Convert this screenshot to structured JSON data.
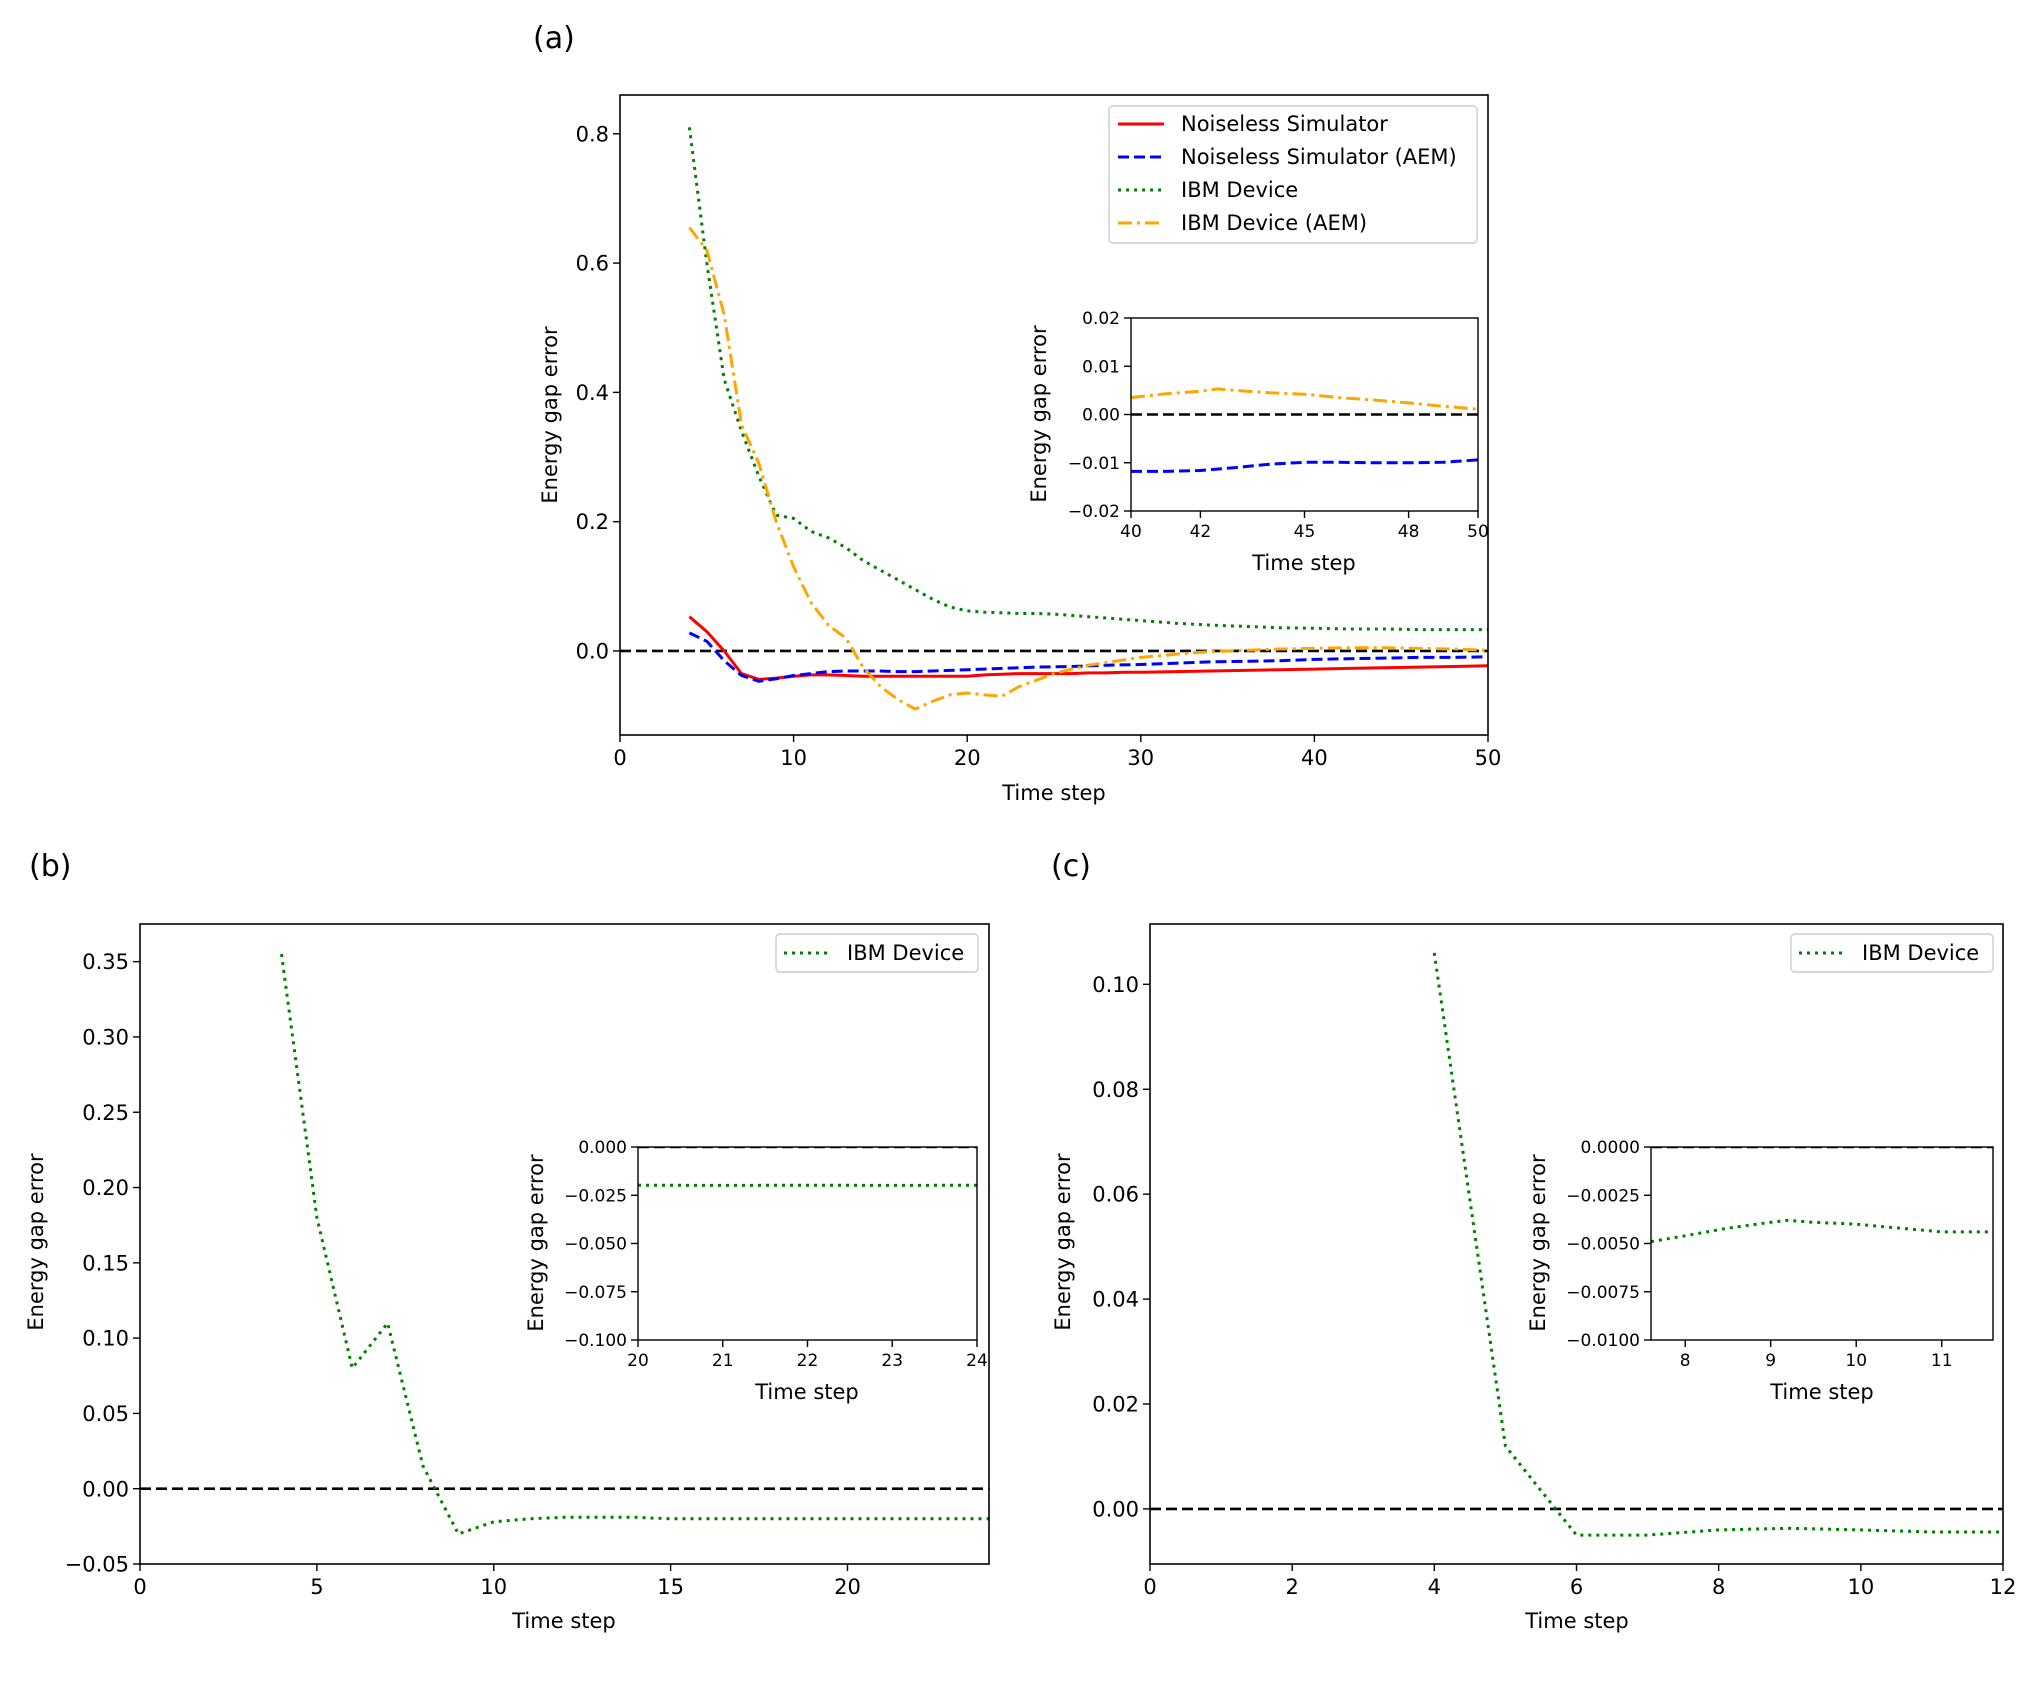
{
  "panels": [
    {
      "label": "(a)",
      "chart_data": {
        "type": "line",
        "title": "",
        "xlabel": "Time step",
        "ylabel": "Energy gap error",
        "xlim": [
          0,
          50
        ],
        "ylim": [
          -0.13,
          0.86
        ],
        "xticks": [
          0,
          10,
          20,
          30,
          40,
          50
        ],
        "xtick_labels": [
          "0",
          "10",
          "20",
          "30",
          "40",
          "50"
        ],
        "yticks": [
          0.0,
          0.2,
          0.4,
          0.6,
          0.8
        ],
        "ytick_labels": [
          "0.0",
          "0.2",
          "0.4",
          "0.6",
          "0.8"
        ],
        "grid": false,
        "legend_position": "top-right",
        "reference_line": 0,
        "series": [
          {
            "name": "Noiseless Simulator",
            "color": "#ff0000",
            "style": "solid",
            "x": [
              4,
              5,
              6,
              7,
              8,
              9,
              10,
              11,
              12,
              13,
              14,
              15,
              16,
              17,
              18,
              19,
              20,
              21,
              22,
              23,
              24,
              25,
              26,
              27,
              28,
              29,
              30,
              32,
              34,
              36,
              38,
              40,
              42,
              44,
              46,
              48,
              50
            ],
            "y": [
              0.053,
              0.03,
              0.0,
              -0.035,
              -0.044,
              -0.042,
              -0.039,
              -0.037,
              -0.037,
              -0.038,
              -0.039,
              -0.039,
              -0.039,
              -0.039,
              -0.039,
              -0.039,
              -0.039,
              -0.037,
              -0.036,
              -0.035,
              -0.035,
              -0.035,
              -0.035,
              -0.034,
              -0.034,
              -0.033,
              -0.033,
              -0.032,
              -0.031,
              -0.03,
              -0.029,
              -0.028,
              -0.027,
              -0.026,
              -0.025,
              -0.024,
              -0.023
            ]
          },
          {
            "name": "Noiseless Simulator (AEM)",
            "color": "#0000ff",
            "style": "dashed",
            "x": [
              4,
              5,
              6,
              7,
              8,
              9,
              10,
              11,
              12,
              13,
              14,
              15,
              16,
              17,
              18,
              19,
              20,
              22,
              24,
              26,
              28,
              30,
              32,
              34,
              36,
              38,
              40,
              42,
              44,
              46,
              48,
              50
            ],
            "y": [
              0.028,
              0.015,
              -0.015,
              -0.038,
              -0.047,
              -0.043,
              -0.038,
              -0.035,
              -0.032,
              -0.031,
              -0.031,
              -0.031,
              -0.032,
              -0.032,
              -0.031,
              -0.03,
              -0.029,
              -0.027,
              -0.025,
              -0.024,
              -0.022,
              -0.021,
              -0.019,
              -0.017,
              -0.016,
              -0.015,
              -0.013,
              -0.012,
              -0.011,
              -0.01,
              -0.01,
              -0.009
            ]
          },
          {
            "name": "IBM Device",
            "color": "#008000",
            "style": "dotted",
            "x": [
              4,
              5,
              6,
              7,
              8,
              9,
              10,
              11,
              12,
              13,
              14,
              15,
              16,
              17,
              18,
              19,
              20,
              21,
              22,
              23,
              24,
              25,
              26,
              27,
              28,
              29,
              30,
              32,
              34,
              36,
              38,
              40,
              42,
              44,
              46,
              48,
              50
            ],
            "y": [
              0.81,
              0.6,
              0.42,
              0.34,
              0.27,
              0.21,
              0.205,
              0.185,
              0.175,
              0.16,
              0.14,
              0.125,
              0.11,
              0.095,
              0.08,
              0.068,
              0.062,
              0.06,
              0.059,
              0.058,
              0.058,
              0.057,
              0.055,
              0.053,
              0.051,
              0.049,
              0.047,
              0.043,
              0.04,
              0.038,
              0.036,
              0.035,
              0.034,
              0.034,
              0.033,
              0.033,
              0.033
            ]
          },
          {
            "name": "IBM Device (AEM)",
            "color": "#ffa500",
            "style": "dashdot",
            "x": [
              4,
              5,
              6,
              7,
              8,
              9,
              10,
              11,
              12,
              13,
              14,
              15,
              16,
              17,
              18,
              19,
              20,
              21,
              22,
              23,
              24,
              25,
              26,
              27,
              28,
              29,
              30,
              32,
              34,
              36,
              38,
              40,
              42,
              44,
              46,
              48,
              50
            ],
            "y": [
              0.655,
              0.62,
              0.52,
              0.35,
              0.29,
              0.2,
              0.13,
              0.075,
              0.04,
              0.02,
              -0.025,
              -0.055,
              -0.075,
              -0.09,
              -0.078,
              -0.068,
              -0.065,
              -0.068,
              -0.07,
              -0.055,
              -0.045,
              -0.035,
              -0.028,
              -0.022,
              -0.018,
              -0.014,
              -0.01,
              -0.005,
              -0.001,
              0.001,
              0.003,
              0.004,
              0.005,
              0.005,
              0.004,
              0.003,
              0.001
            ]
          }
        ],
        "inset": {
          "xlabel": "Time step",
          "ylabel": "Energy gap error",
          "xlim": [
            40,
            50
          ],
          "ylim": [
            -0.02,
            0.02
          ],
          "xticks": [
            40,
            42,
            45,
            48,
            50
          ],
          "xtick_labels": [
            "40",
            "42",
            "45",
            "48",
            "50"
          ],
          "yticks": [
            -0.02,
            -0.01,
            0.0,
            0.01,
            0.02
          ],
          "ytick_labels": [
            "−0.02",
            "−0.01",
            "0.00",
            "0.01",
            "0.02"
          ],
          "reference_line": 0,
          "series": [
            {
              "name": "Noiseless Simulator (AEM)",
              "color": "#0000ff",
              "style": "dashed",
              "x": [
                40,
                41,
                42,
                43,
                44,
                45,
                46,
                47,
                48,
                49,
                50
              ],
              "y": [
                -0.0118,
                -0.0118,
                -0.0116,
                -0.011,
                -0.0103,
                -0.0099,
                -0.0099,
                -0.01,
                -0.01,
                -0.0099,
                -0.0094
              ]
            },
            {
              "name": "IBM Device (AEM)",
              "color": "#ffa500",
              "style": "dashdot",
              "x": [
                40,
                41,
                42,
                42.5,
                43,
                44,
                45,
                46,
                47,
                48,
                49,
                50
              ],
              "y": [
                0.0035,
                0.0043,
                0.0048,
                0.0053,
                0.005,
                0.0045,
                0.0042,
                0.0035,
                0.003,
                0.0024,
                0.0017,
                0.0011
              ]
            }
          ]
        }
      }
    },
    {
      "label": "(b)",
      "chart_data": {
        "type": "line",
        "title": "",
        "xlabel": "Time step",
        "ylabel": "Energy gap error",
        "xlim": [
          0,
          24
        ],
        "ylim": [
          -0.05,
          0.375
        ],
        "xticks": [
          0,
          5,
          10,
          15,
          20
        ],
        "xtick_labels": [
          "0",
          "5",
          "10",
          "15",
          "20"
        ],
        "yticks": [
          -0.05,
          0.0,
          0.05,
          0.1,
          0.15,
          0.2,
          0.25,
          0.3,
          0.35
        ],
        "ytick_labels": [
          "−0.05",
          "0.00",
          "0.05",
          "0.10",
          "0.15",
          "0.20",
          "0.25",
          "0.30",
          "0.35"
        ],
        "grid": false,
        "legend_position": "top-right",
        "reference_line": 0,
        "series": [
          {
            "name": "IBM Device",
            "color": "#008000",
            "style": "dotted",
            "x": [
              4,
              5,
              6,
              7,
              8,
              9,
              10,
              11,
              12,
              13,
              14,
              15,
              16,
              17,
              18,
              19,
              20,
              21,
              22,
              23,
              24
            ],
            "y": [
              0.355,
              0.18,
              0.08,
              0.11,
              0.015,
              -0.03,
              -0.022,
              -0.02,
              -0.019,
              -0.019,
              -0.019,
              -0.02,
              -0.02,
              -0.02,
              -0.02,
              -0.02,
              -0.02,
              -0.02,
              -0.02,
              -0.02,
              -0.02
            ]
          }
        ],
        "inset": {
          "xlabel": "Time step",
          "ylabel": "Energy gap error",
          "xlim": [
            20,
            24
          ],
          "ylim": [
            -0.1,
            0.0
          ],
          "xticks": [
            20,
            21,
            22,
            23,
            24
          ],
          "xtick_labels": [
            "20",
            "21",
            "22",
            "23",
            "24"
          ],
          "yticks": [
            -0.1,
            -0.075,
            -0.05,
            -0.025,
            0.0
          ],
          "ytick_labels": [
            "−0.100",
            "−0.075",
            "−0.050",
            "−0.025",
            "0.000"
          ],
          "reference_line": 0,
          "series": [
            {
              "name": "IBM Device",
              "color": "#008000",
              "style": "dotted",
              "x": [
                20,
                21,
                22,
                23,
                24
              ],
              "y": [
                -0.0198,
                -0.0199,
                -0.0198,
                -0.0199,
                -0.0198
              ]
            }
          ]
        }
      }
    },
    {
      "label": "(c)",
      "chart_data": {
        "type": "line",
        "title": "",
        "xlabel": "Time step",
        "ylabel": "Energy gap error",
        "xlim": [
          0,
          12
        ],
        "ylim": [
          -0.0105,
          0.1115
        ],
        "xticks": [
          0,
          2,
          4,
          6,
          8,
          10,
          12
        ],
        "xtick_labels": [
          "0",
          "2",
          "4",
          "6",
          "8",
          "10",
          "12"
        ],
        "yticks": [
          0.0,
          0.02,
          0.04,
          0.06,
          0.08,
          0.1
        ],
        "ytick_labels": [
          "0.00",
          "0.02",
          "0.04",
          "0.06",
          "0.08",
          "0.10"
        ],
        "grid": false,
        "legend_position": "top-right",
        "reference_line": 0,
        "series": [
          {
            "name": "IBM Device",
            "color": "#008000",
            "style": "dotted",
            "x": [
              4,
              5,
              6,
              7,
              8,
              9,
              10,
              11,
              12
            ],
            "y": [
              0.106,
              0.012,
              -0.005,
              -0.005,
              -0.004,
              -0.0037,
              -0.004,
              -0.0044,
              -0.0044
            ]
          }
        ],
        "inset": {
          "xlabel": "Time step",
          "ylabel": "Energy gap error",
          "xlim": [
            7.6,
            11.6
          ],
          "ylim": [
            -0.01,
            0.0
          ],
          "xticks": [
            8,
            9,
            10,
            11
          ],
          "xtick_labels": [
            "8",
            "9",
            "10",
            "11"
          ],
          "yticks": [
            -0.01,
            -0.0075,
            -0.005,
            -0.0025,
            0.0
          ],
          "ytick_labels": [
            "−0.0100",
            "−0.0075",
            "−0.0050",
            "−0.0025",
            "0.0000"
          ],
          "reference_line": 0,
          "series": [
            {
              "name": "IBM Device",
              "color": "#008000",
              "style": "dotted",
              "x": [
                7.6,
                8.0,
                8.5,
                9.0,
                9.2,
                9.5,
                10.0,
                10.5,
                11.0,
                11.6
              ],
              "y": [
                -0.0049,
                -0.0046,
                -0.0042,
                -0.0039,
                -0.0038,
                -0.0039,
                -0.004,
                -0.0042,
                -0.0044,
                -0.0044
              ]
            }
          ]
        }
      }
    }
  ]
}
